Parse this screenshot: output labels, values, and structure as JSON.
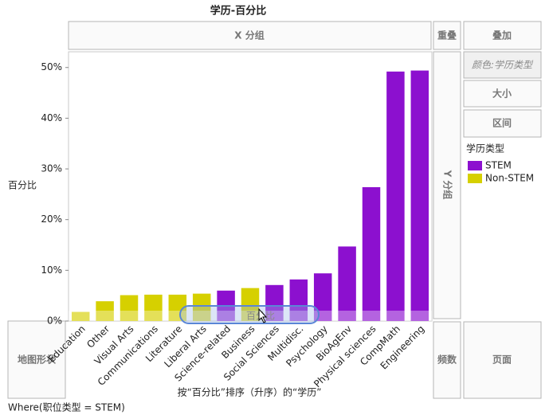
{
  "chart_data": {
    "type": "bar",
    "title": "学历-百分比",
    "ylabel": "百分比",
    "xlabel": "按“百分比”排序（升序）的“学历”",
    "categories": [
      "Education",
      "Other",
      "Visual Arts",
      "Communications",
      "Literature",
      "Liberal Arts",
      "Science-related",
      "Business",
      "Social Sciences",
      "Multidisc.",
      "Psychology",
      "BioAgEnv",
      "Physical sciences",
      "CompMath",
      "Engineering"
    ],
    "series": [
      {
        "name": "STEM",
        "color": "#8c10cf",
        "values": [
          null,
          null,
          null,
          null,
          null,
          null,
          6.0,
          null,
          7.1,
          8.2,
          9.4,
          14.7,
          26.4,
          49.2,
          49.4
        ]
      },
      {
        "name": "Non-STEM",
        "color": "#d6d000",
        "values": [
          1.8,
          3.9,
          5.1,
          5.2,
          5.2,
          5.4,
          null,
          6.5,
          null,
          null,
          null,
          null,
          null,
          null,
          null
        ]
      }
    ],
    "legend_title": "学历类型",
    "ylim": [
      0,
      53.1
    ],
    "yticks": [
      {
        "value": 0,
        "label": "0%"
      },
      {
        "value": 10,
        "label": "10%"
      },
      {
        "value": 20,
        "label": "20%"
      },
      {
        "value": 30,
        "label": "30%"
      },
      {
        "value": 40,
        "label": "40%"
      },
      {
        "value": 50,
        "label": "50%"
      }
    ],
    "grid": false
  },
  "ui": {
    "x_group": "X 分组",
    "overlap": "重叠",
    "overlay": "叠加",
    "color_role": "颜色:学历类型",
    "size": "大小",
    "interval": "区间",
    "y_group": "Y 分组",
    "map_shape": "地图形状",
    "frequency": "频数",
    "page": "页面",
    "drag_label": "百分比",
    "where": "Where(职位类型 = STEM)"
  }
}
